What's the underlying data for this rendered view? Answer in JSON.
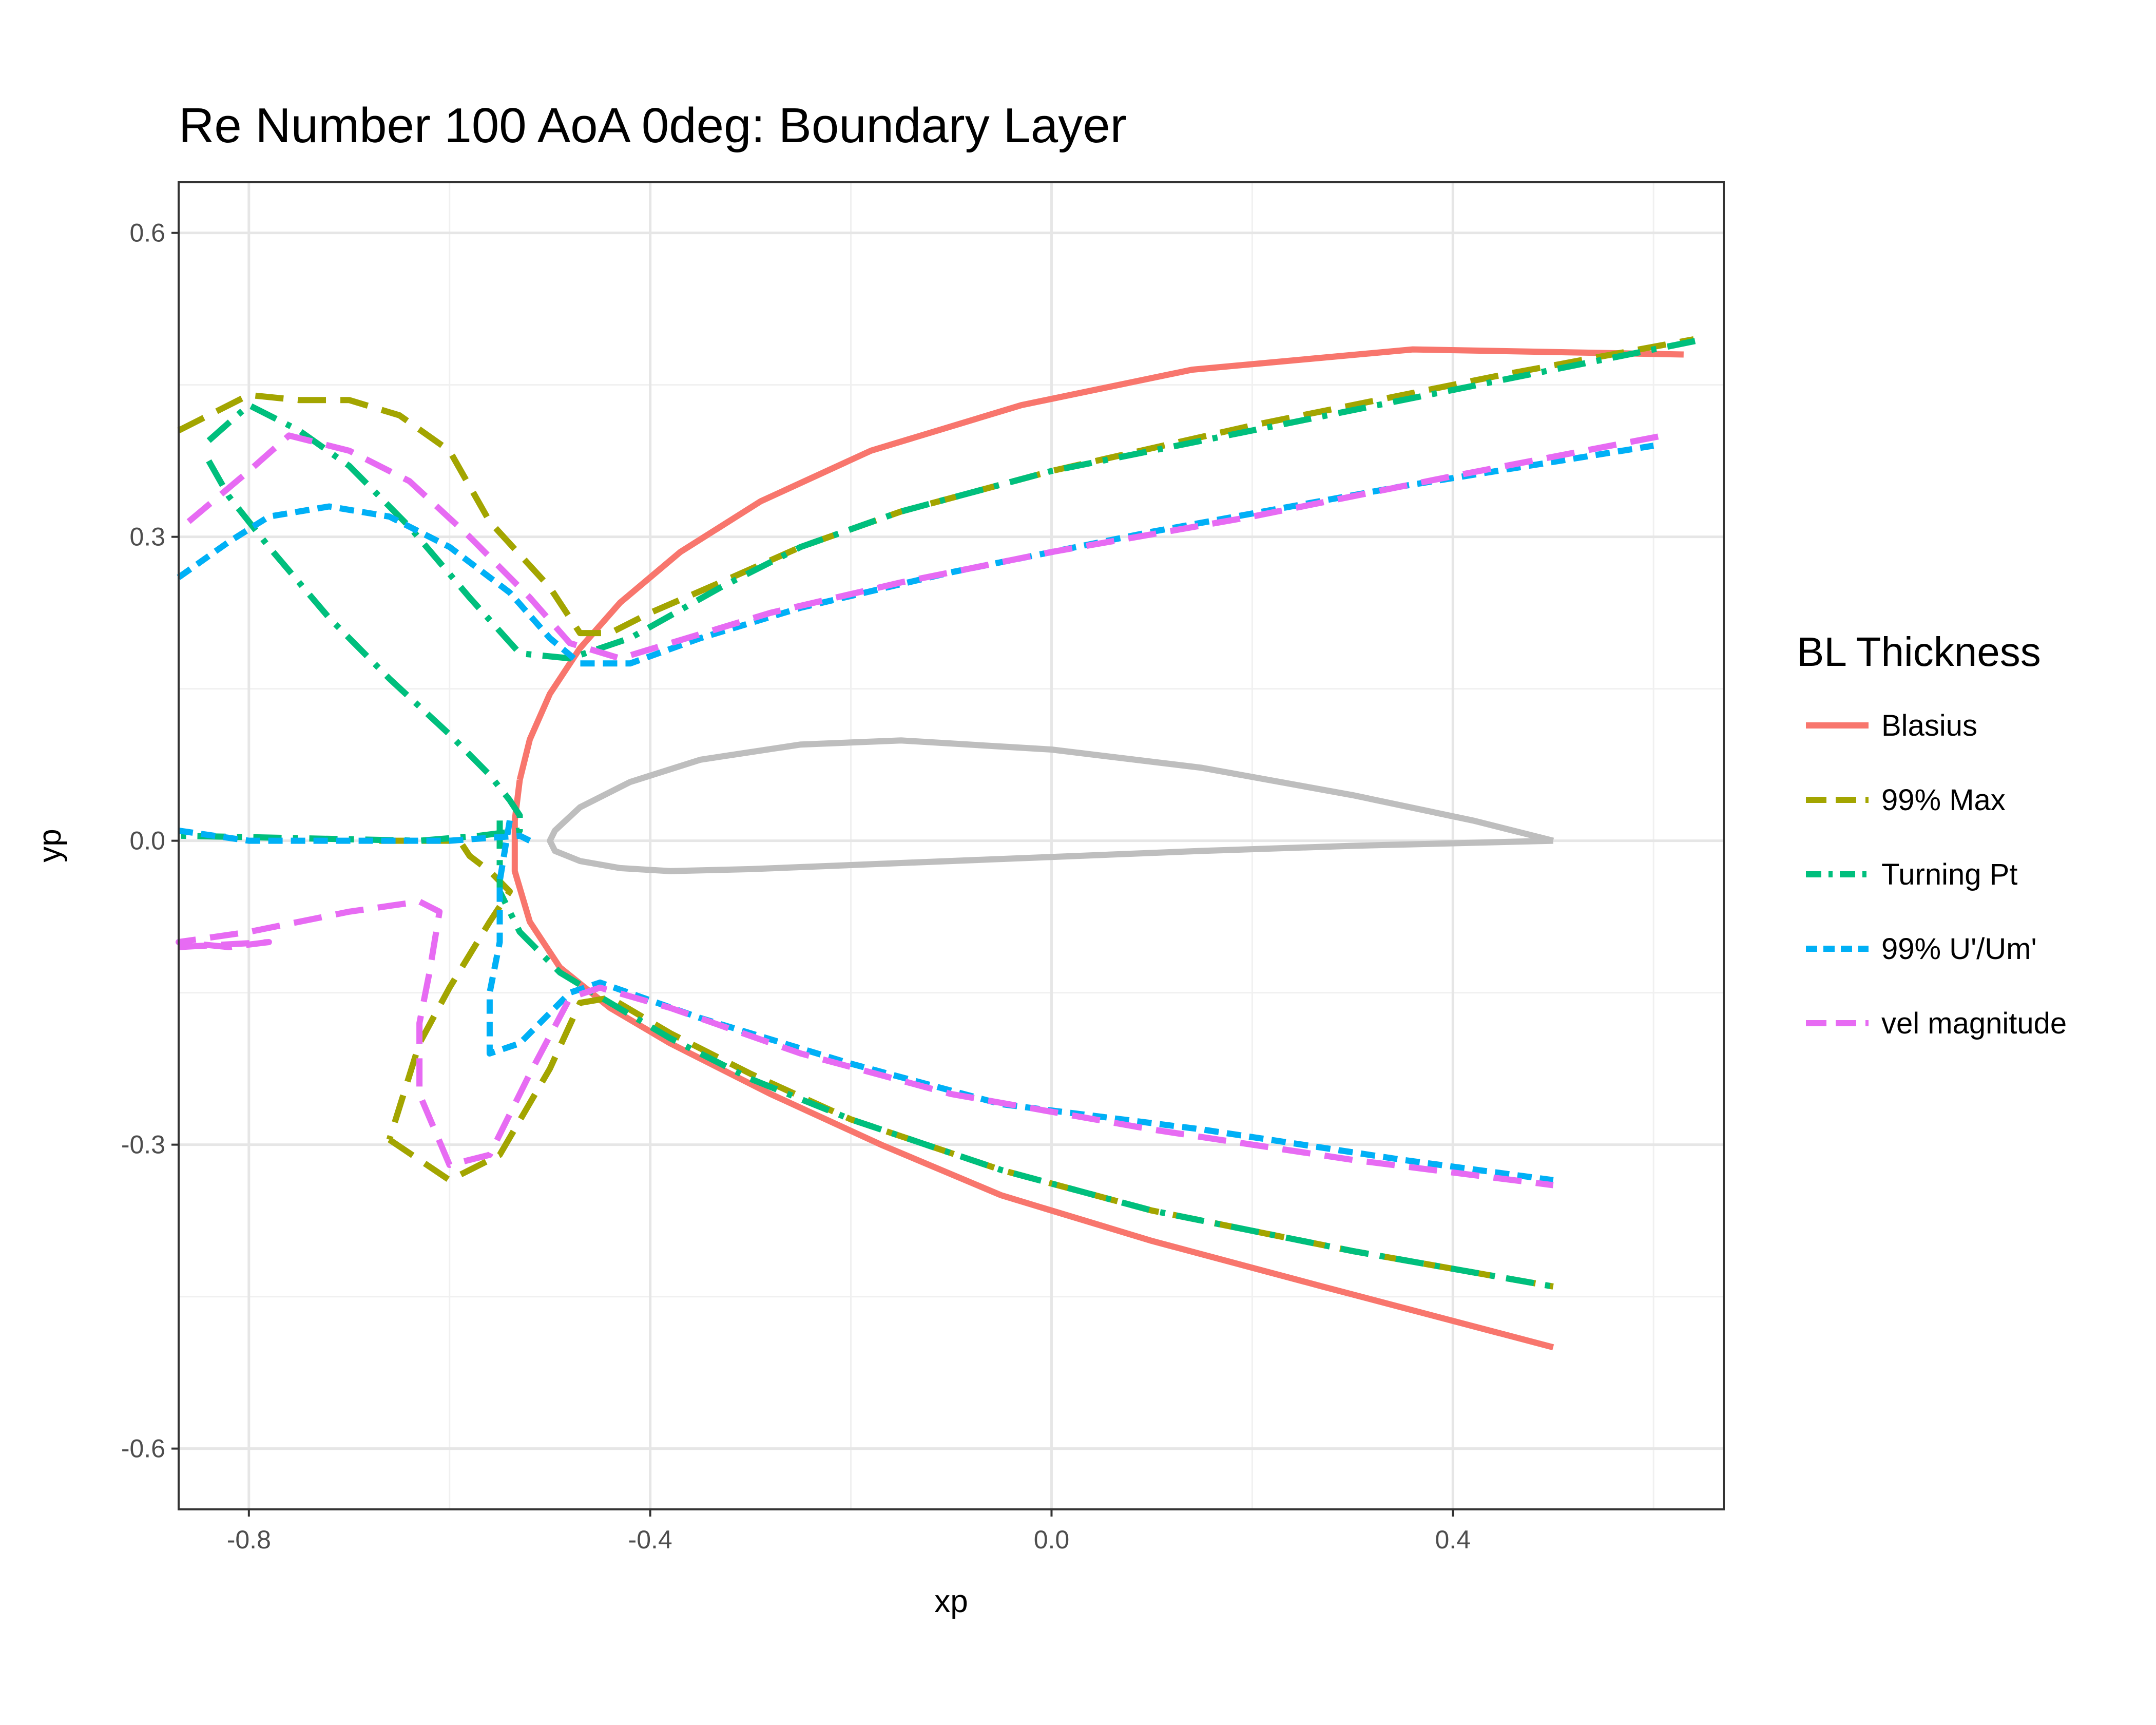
{
  "chart_data": {
    "type": "line",
    "title": "Re Number 100 AoA 0deg: Boundary Layer",
    "xlabel": "xp",
    "ylabel": "yp",
    "xlim": [
      -0.87,
      0.67
    ],
    "ylim": [
      -0.66,
      0.65
    ],
    "x_ticks": [
      -0.8,
      -0.4,
      0.0,
      0.4
    ],
    "x_tick_labels": [
      "-0.8",
      "-0.4",
      "0.0",
      "0.4"
    ],
    "y_ticks": [
      -0.6,
      -0.3,
      0.0,
      0.3,
      0.6
    ],
    "y_tick_labels": [
      "-0.6",
      "-0.3",
      "0.0",
      "0.3",
      "0.6"
    ],
    "grid": true,
    "legend": {
      "title": "BL Thickness",
      "position": "right"
    },
    "airfoil": {
      "color": "#BEBEBE",
      "points": [
        [
          0.5,
          0.0
        ],
        [
          0.42,
          0.02
        ],
        [
          0.3,
          0.045
        ],
        [
          0.15,
          0.072
        ],
        [
          0.0,
          0.09
        ],
        [
          -0.15,
          0.099
        ],
        [
          -0.25,
          0.095
        ],
        [
          -0.35,
          0.08
        ],
        [
          -0.42,
          0.058
        ],
        [
          -0.47,
          0.033
        ],
        [
          -0.495,
          0.01
        ],
        [
          -0.5,
          0.0
        ],
        [
          -0.495,
          -0.01
        ],
        [
          -0.47,
          -0.02
        ],
        [
          -0.43,
          -0.027
        ],
        [
          -0.38,
          -0.03
        ],
        [
          -0.3,
          -0.028
        ],
        [
          -0.15,
          -0.022
        ],
        [
          0.0,
          -0.016
        ],
        [
          0.15,
          -0.01
        ],
        [
          0.3,
          -0.005
        ],
        [
          0.5,
          0.0
        ]
      ]
    },
    "series": [
      {
        "name": "Blasius",
        "color": "#F8766D",
        "dash": "solid",
        "segments": [
          [
            [
              -0.53,
              0.06
            ],
            [
              -0.52,
              0.1
            ],
            [
              -0.5,
              0.145
            ],
            [
              -0.47,
              0.19
            ],
            [
              -0.43,
              0.235
            ],
            [
              -0.37,
              0.285
            ],
            [
              -0.29,
              0.335
            ],
            [
              -0.18,
              0.385
            ],
            [
              -0.03,
              0.43
            ],
            [
              0.14,
              0.465
            ],
            [
              0.36,
              0.485
            ],
            [
              0.63,
              0.48
            ]
          ],
          [
            [
              -0.53,
              0.06
            ],
            [
              -0.535,
              0.02
            ],
            [
              -0.535,
              -0.03
            ],
            [
              -0.52,
              -0.08
            ],
            [
              -0.49,
              -0.125
            ],
            [
              -0.44,
              -0.165
            ],
            [
              -0.38,
              -0.2
            ],
            [
              -0.28,
              -0.25
            ],
            [
              -0.17,
              -0.3
            ],
            [
              -0.05,
              -0.35
            ],
            [
              0.1,
              -0.395
            ],
            [
              0.27,
              -0.44
            ],
            [
              0.5,
              -0.5
            ]
          ]
        ]
      },
      {
        "name": "99% Max",
        "color": "#A3A500",
        "dash": "long",
        "segments": [
          [
            [
              -0.87,
              0.405
            ],
            [
              -0.8,
              0.44
            ],
            [
              -0.75,
              0.435
            ],
            [
              -0.7,
              0.435
            ],
            [
              -0.65,
              0.42
            ],
            [
              -0.6,
              0.385
            ],
            [
              -0.56,
              0.315
            ],
            [
              -0.5,
              0.25
            ],
            [
              -0.47,
              0.205
            ],
            [
              -0.44,
              0.205
            ],
            [
              -0.4,
              0.225
            ],
            [
              -0.33,
              0.255
            ],
            [
              -0.25,
              0.29
            ],
            [
              -0.15,
              0.325
            ],
            [
              0.0,
              0.365
            ],
            [
              0.2,
              0.41
            ],
            [
              0.45,
              0.46
            ],
            [
              0.64,
              0.495
            ]
          ],
          [
            [
              -0.66,
              -0.295
            ],
            [
              -0.6,
              -0.335
            ],
            [
              -0.55,
              -0.31
            ],
            [
              -0.5,
              -0.225
            ],
            [
              -0.47,
              -0.16
            ],
            [
              -0.44,
              -0.155
            ],
            [
              -0.38,
              -0.19
            ],
            [
              -0.3,
              -0.23
            ],
            [
              -0.2,
              -0.275
            ],
            [
              -0.05,
              -0.325
            ],
            [
              0.1,
              -0.365
            ],
            [
              0.3,
              -0.405
            ],
            [
              0.5,
              -0.44
            ]
          ],
          [
            [
              -0.67,
              0.0
            ],
            [
              -0.59,
              0.0
            ],
            [
              -0.58,
              -0.015
            ],
            [
              -0.56,
              -0.03
            ],
            [
              -0.54,
              -0.05
            ],
            [
              -0.56,
              -0.08
            ],
            [
              -0.6,
              -0.145
            ],
            [
              -0.63,
              -0.2
            ],
            [
              -0.66,
              -0.295
            ]
          ]
        ]
      },
      {
        "name": "Turning Pt",
        "color": "#00BF7D",
        "dash": "dashdot",
        "segments": [
          [
            [
              -0.84,
              0.375
            ],
            [
              -0.82,
              0.34
            ],
            [
              -0.78,
              0.29
            ],
            [
              -0.72,
              0.22
            ],
            [
              -0.66,
              0.16
            ],
            [
              -0.6,
              0.105
            ],
            [
              -0.56,
              0.065
            ],
            [
              -0.54,
              0.04
            ],
            [
              -0.53,
              0.025
            ],
            [
              -0.53,
              0.01
            ],
            [
              -0.57,
              0.005
            ],
            [
              -0.63,
              0.0
            ],
            [
              -0.87,
              0.005
            ]
          ],
          [
            [
              -0.84,
              0.395
            ],
            [
              -0.8,
              0.43
            ],
            [
              -0.75,
              0.405
            ],
            [
              -0.7,
              0.37
            ],
            [
              -0.64,
              0.31
            ],
            [
              -0.58,
              0.24
            ],
            [
              -0.53,
              0.185
            ],
            [
              -0.48,
              0.18
            ],
            [
              -0.42,
              0.2
            ],
            [
              -0.33,
              0.25
            ],
            [
              -0.25,
              0.29
            ],
            [
              -0.15,
              0.325
            ],
            [
              0.0,
              0.365
            ],
            [
              0.2,
              0.405
            ],
            [
              0.45,
              0.455
            ],
            [
              0.65,
              0.495
            ]
          ],
          [
            [
              -0.55,
              0.02
            ],
            [
              -0.55,
              -0.05
            ],
            [
              -0.53,
              -0.09
            ],
            [
              -0.49,
              -0.13
            ],
            [
              -0.44,
              -0.16
            ],
            [
              -0.38,
              -0.195
            ],
            [
              -0.3,
              -0.235
            ],
            [
              -0.2,
              -0.275
            ],
            [
              -0.05,
              -0.325
            ],
            [
              0.1,
              -0.365
            ],
            [
              0.3,
              -0.405
            ],
            [
              0.5,
              -0.44
            ]
          ]
        ]
      },
      {
        "name": "99% U'/Um'",
        "color": "#00B0F6",
        "dash": "medium",
        "segments": [
          [
            [
              -0.87,
              0.26
            ],
            [
              -0.82,
              0.295
            ],
            [
              -0.78,
              0.32
            ],
            [
              -0.72,
              0.33
            ],
            [
              -0.66,
              0.32
            ],
            [
              -0.6,
              0.29
            ],
            [
              -0.54,
              0.245
            ],
            [
              -0.5,
              0.2
            ],
            [
              -0.47,
              0.175
            ],
            [
              -0.42,
              0.175
            ],
            [
              -0.35,
              0.2
            ],
            [
              -0.25,
              0.23
            ],
            [
              -0.1,
              0.265
            ],
            [
              0.1,
              0.305
            ],
            [
              0.35,
              0.35
            ],
            [
              0.6,
              0.39
            ]
          ],
          [
            [
              -0.87,
              0.01
            ],
            [
              -0.8,
              0.0
            ],
            [
              -0.7,
              0.0
            ],
            [
              -0.6,
              0.0
            ],
            [
              -0.53,
              0.005
            ],
            [
              -0.52,
              0.0
            ]
          ],
          [
            [
              -0.54,
              0.02
            ],
            [
              -0.55,
              -0.04
            ],
            [
              -0.55,
              -0.1
            ],
            [
              -0.56,
              -0.15
            ],
            [
              -0.56,
              -0.21
            ],
            [
              -0.53,
              -0.2
            ],
            [
              -0.48,
              -0.15
            ],
            [
              -0.45,
              -0.14
            ],
            [
              -0.35,
              -0.175
            ],
            [
              -0.2,
              -0.22
            ],
            [
              -0.05,
              -0.26
            ],
            [
              0.15,
              -0.285
            ],
            [
              0.35,
              -0.315
            ],
            [
              0.5,
              -0.335
            ]
          ]
        ]
      },
      {
        "name": "vel magnitude",
        "color": "#E76BF3",
        "dash": "long",
        "segments": [
          [
            [
              -0.86,
              0.315
            ],
            [
              -0.8,
              0.365
            ],
            [
              -0.76,
              0.4
            ],
            [
              -0.7,
              0.385
            ],
            [
              -0.64,
              0.355
            ],
            [
              -0.58,
              0.3
            ],
            [
              -0.52,
              0.24
            ],
            [
              -0.48,
              0.195
            ],
            [
              -0.43,
              0.18
            ],
            [
              -0.38,
              0.195
            ],
            [
              -0.28,
              0.225
            ],
            [
              -0.15,
              0.255
            ],
            [
              0.0,
              0.285
            ],
            [
              0.2,
              0.32
            ],
            [
              0.4,
              0.36
            ],
            [
              0.61,
              0.4
            ]
          ],
          [
            [
              -0.87,
              -0.105
            ],
            [
              -0.78,
              -0.1
            ],
            [
              -0.82,
              -0.105
            ],
            [
              -0.87,
              -0.1
            ],
            [
              -0.8,
              -0.09
            ],
            [
              -0.7,
              -0.07
            ],
            [
              -0.63,
              -0.06
            ],
            [
              -0.61,
              -0.07
            ],
            [
              -0.62,
              -0.13
            ],
            [
              -0.63,
              -0.18
            ],
            [
              -0.63,
              -0.25
            ],
            [
              -0.6,
              -0.32
            ],
            [
              -0.56,
              -0.31
            ],
            [
              -0.52,
              -0.23
            ],
            [
              -0.48,
              -0.155
            ],
            [
              -0.45,
              -0.145
            ],
            [
              -0.38,
              -0.165
            ],
            [
              -0.25,
              -0.21
            ],
            [
              -0.1,
              -0.25
            ],
            [
              0.1,
              -0.285
            ],
            [
              0.3,
              -0.315
            ],
            [
              0.5,
              -0.34
            ]
          ]
        ]
      }
    ]
  }
}
